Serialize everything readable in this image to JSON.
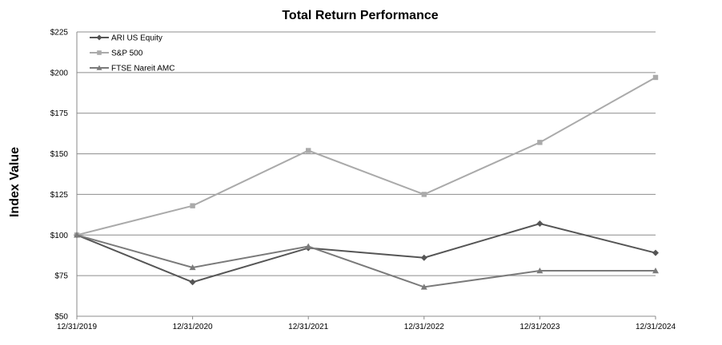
{
  "chart_data": {
    "type": "line",
    "title": "Total Return Performance",
    "xlabel": "",
    "ylabel": "Index Value",
    "categories": [
      "12/31/2019",
      "12/31/2020",
      "12/31/2021",
      "12/31/2022",
      "12/31/2023",
      "12/31/2024"
    ],
    "ylim": [
      50,
      225
    ],
    "yticks": [
      50,
      75,
      100,
      125,
      150,
      175,
      200,
      225
    ],
    "ytick_labels": [
      "$50",
      "$75",
      "$100",
      "$125",
      "$150",
      "$175",
      "$200",
      "$225"
    ],
    "grid": true,
    "legend_position": "top-left",
    "series": [
      {
        "name": "ARI US Equity",
        "marker": "diamond",
        "color": "#555555",
        "values": [
          100,
          71,
          92,
          86,
          107,
          89
        ]
      },
      {
        "name": "S&P 500",
        "marker": "square",
        "color": "#aaaaaa",
        "values": [
          100,
          118,
          152,
          125,
          157,
          197
        ]
      },
      {
        "name": "FTSE Nareit AMC",
        "marker": "triangle",
        "color": "#7a7a7a",
        "values": [
          100,
          80,
          93,
          68,
          78,
          78
        ]
      }
    ]
  }
}
